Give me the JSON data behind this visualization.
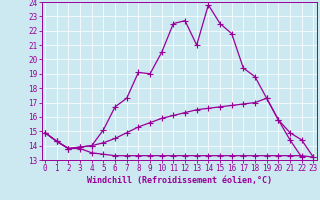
{
  "xlabel": "Windchill (Refroidissement éolien,°C)",
  "x_values": [
    0,
    1,
    2,
    3,
    4,
    5,
    6,
    7,
    8,
    9,
    10,
    11,
    12,
    13,
    14,
    15,
    16,
    17,
    18,
    19,
    20,
    21,
    22,
    23
  ],
  "line_top": [
    14.9,
    14.3,
    13.8,
    13.9,
    14.0,
    15.1,
    16.7,
    17.3,
    19.1,
    19.0,
    20.5,
    22.5,
    22.7,
    21.0,
    23.8,
    22.5,
    21.8,
    19.4,
    18.8,
    17.3,
    15.8,
    14.9,
    14.4,
    13.2
  ],
  "line_mid": [
    14.9,
    14.3,
    13.8,
    13.9,
    14.0,
    14.2,
    14.5,
    14.9,
    15.3,
    15.6,
    15.9,
    16.1,
    16.3,
    16.5,
    16.6,
    16.7,
    16.8,
    16.9,
    17.0,
    17.3,
    15.8,
    14.4,
    13.2,
    null
  ],
  "line_bot": [
    14.9,
    14.3,
    13.8,
    13.8,
    13.5,
    13.4,
    13.3,
    13.3,
    13.3,
    13.3,
    13.3,
    13.3,
    13.3,
    13.3,
    13.3,
    13.3,
    13.3,
    13.3,
    13.3,
    13.3,
    13.3,
    13.3,
    13.3,
    13.2
  ],
  "ylim": [
    13,
    24
  ],
  "xlim": [
    -0.3,
    23.3
  ],
  "yticks": [
    13,
    14,
    15,
    16,
    17,
    18,
    19,
    20,
    21,
    22,
    23,
    24
  ],
  "xticks": [
    0,
    1,
    2,
    3,
    4,
    5,
    6,
    7,
    8,
    9,
    10,
    11,
    12,
    13,
    14,
    15,
    16,
    17,
    18,
    19,
    20,
    21,
    22,
    23
  ],
  "line_color": "#990099",
  "bg_color": "#cce8f0",
  "grid_color": "#ffffff",
  "marker": "+",
  "marker_size": 4,
  "marker_lw": 0.8,
  "line_width": 0.9
}
